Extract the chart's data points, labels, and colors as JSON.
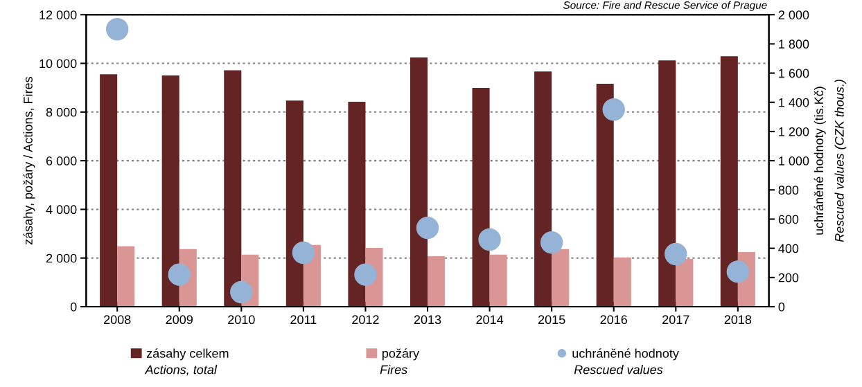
{
  "chart_data": {
    "type": "bar",
    "categories": [
      "2008",
      "2009",
      "2010",
      "2011",
      "2012",
      "2013",
      "2014",
      "2015",
      "2016",
      "2017",
      "2018"
    ],
    "series": [
      {
        "name": "zásahy celkem",
        "color": "#632423",
        "values": [
          9550,
          9500,
          9720,
          8470,
          8420,
          10240,
          8990,
          9670,
          9160,
          10120,
          10290
        ]
      },
      {
        "name": "požáry",
        "color": "#da9694",
        "values": [
          2480,
          2370,
          2140,
          2540,
          2420,
          2080,
          2140,
          2370,
          2020,
          1960,
          2250
        ]
      },
      {
        "name": "uchráněné hodnoty",
        "type": "scatter",
        "axis": "y2",
        "color": "#95b3d7",
        "values": [
          1900,
          220,
          100,
          370,
          220,
          540,
          460,
          440,
          1350,
          360,
          240
        ]
      }
    ],
    "ylabel": "zásahy, požáry / Actions, Fires",
    "y2label": "uchráněné hodnoty (tis.Kč)\nRescued values (CZK thous.)",
    "ylim": [
      0,
      12000
    ],
    "yticks": [
      0,
      {
        "value": 2000,
        "label": "2 000"
      },
      {
        "value": 4000,
        "label": "4 000"
      },
      {
        "value": 6000,
        "label": "6 000"
      },
      {
        "value": 8000,
        "label": "8 000"
      },
      {
        "value": 10000,
        "label": "10 000"
      },
      {
        "value": 12000,
        "label": "12 000"
      }
    ],
    "y2lim": [
      0,
      2000
    ],
    "y2ticks": [
      0,
      200,
      400,
      600,
      800,
      {
        "value": 1000,
        "label": "1 000"
      },
      {
        "value": 1200,
        "label": "1 200"
      },
      {
        "value": 1400,
        "label": "1 400"
      },
      {
        "value": 1600,
        "label": "1 600"
      },
      {
        "value": 1800,
        "label": "1 800"
      },
      {
        "value": 2000,
        "label": "2 000"
      }
    ],
    "grid": "y",
    "legend": "bottom",
    "marker": "circle",
    "annotations": [
      "Source: Fire and Rescue Service of Prague",
      "Actions, total",
      "Fires",
      "Rescued values"
    ]
  }
}
